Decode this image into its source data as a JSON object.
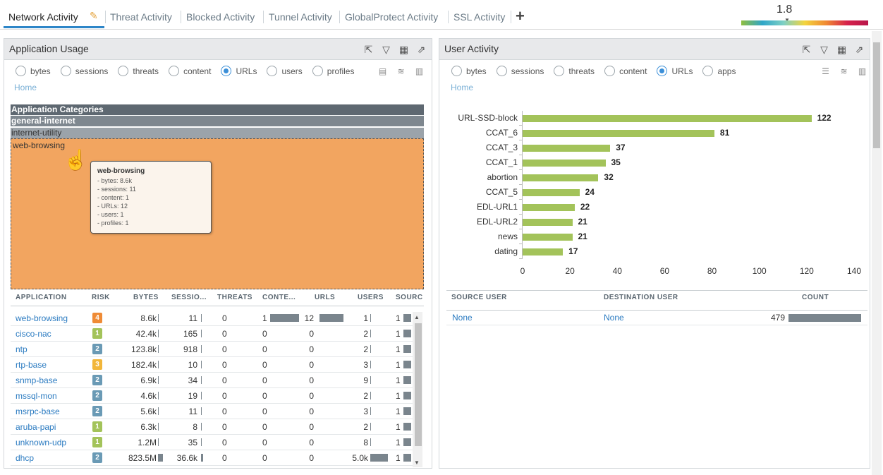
{
  "tabs": [
    {
      "label": "Network Activity"
    },
    {
      "label": "Threat Activity"
    },
    {
      "label": "Blocked Activity"
    },
    {
      "label": "Tunnel Activity"
    },
    {
      "label": "GlobalProtect Activity"
    },
    {
      "label": "SSL Activity"
    }
  ],
  "add_tab_label": "+",
  "risk_scale": {
    "value": "1.8"
  },
  "app_usage": {
    "title": "Application Usage",
    "radios": [
      "bytes",
      "sessions",
      "threats",
      "content",
      "URLs",
      "users",
      "profiles"
    ],
    "selected": "URLs",
    "breadcrumb": "Home",
    "treemap": {
      "levels": [
        "Application Categories",
        "general-internet",
        "internet-utility"
      ],
      "cell": "web-browsing"
    },
    "tooltip": {
      "title": "web-browsing",
      "lines": [
        "- bytes: 8.6k",
        "- sessions: 11",
        "- content: 1",
        "- URLs: 12",
        "- users: 1",
        "- profiles: 1"
      ]
    },
    "columns": [
      "APPLICATION",
      "RISK",
      "BYTES",
      "SESSIO...",
      "THREATS",
      "CONTE...",
      "URLS",
      "USERS",
      "SOURC"
    ],
    "rows": [
      {
        "app": "web-browsing",
        "risk": "4",
        "bytes": "8.6k",
        "sessions": "11",
        "threats": "0",
        "content": "1",
        "urls": "12",
        "users": "1",
        "sources": "1"
      },
      {
        "app": "cisco-nac",
        "risk": "1",
        "bytes": "42.4k",
        "sessions": "165",
        "threats": "0",
        "content": "0",
        "urls": "0",
        "users": "2",
        "sources": "1"
      },
      {
        "app": "ntp",
        "risk": "2",
        "bytes": "123.8k",
        "sessions": "918",
        "threats": "0",
        "content": "0",
        "urls": "0",
        "users": "2",
        "sources": "1"
      },
      {
        "app": "rtp-base",
        "risk": "3",
        "bytes": "182.4k",
        "sessions": "10",
        "threats": "0",
        "content": "0",
        "urls": "0",
        "users": "3",
        "sources": "1"
      },
      {
        "app": "snmp-base",
        "risk": "2",
        "bytes": "6.9k",
        "sessions": "34",
        "threats": "0",
        "content": "0",
        "urls": "0",
        "users": "9",
        "sources": "1"
      },
      {
        "app": "mssql-mon",
        "risk": "2",
        "bytes": "4.6k",
        "sessions": "19",
        "threats": "0",
        "content": "0",
        "urls": "0",
        "users": "2",
        "sources": "1"
      },
      {
        "app": "msrpc-base",
        "risk": "2",
        "bytes": "5.6k",
        "sessions": "11",
        "threats": "0",
        "content": "0",
        "urls": "0",
        "users": "3",
        "sources": "1"
      },
      {
        "app": "aruba-papi",
        "risk": "1",
        "bytes": "6.3k",
        "sessions": "8",
        "threats": "0",
        "content": "0",
        "urls": "0",
        "users": "2",
        "sources": "1"
      },
      {
        "app": "unknown-udp",
        "risk": "1",
        "bytes": "1.2M",
        "sessions": "35",
        "threats": "0",
        "content": "0",
        "urls": "0",
        "users": "8",
        "sources": "1"
      },
      {
        "app": "dhcp",
        "risk": "2",
        "bytes": "823.5M",
        "sessions": "36.6k",
        "threats": "0",
        "content": "0",
        "urls": "0",
        "users": "5.0k",
        "sources": "1"
      }
    ]
  },
  "user_activity": {
    "title": "User Activity",
    "radios": [
      "bytes",
      "sessions",
      "threats",
      "content",
      "URLs",
      "apps"
    ],
    "selected": "URLs",
    "breadcrumb": "Home",
    "columns": [
      "SOURCE USER",
      "DESTINATION USER",
      "COUNT"
    ],
    "rows": [
      {
        "source": "None",
        "destination": "None",
        "count": "479"
      }
    ]
  },
  "chart_data": {
    "type": "bar",
    "orientation": "horizontal",
    "categories": [
      "URL-SSD-block",
      "CCAT_6",
      "CCAT_3",
      "CCAT_1",
      "abortion",
      "CCAT_5",
      "EDL-URL1",
      "EDL-URL2",
      "news",
      "dating"
    ],
    "values": [
      122,
      81,
      37,
      35,
      32,
      24,
      22,
      21,
      21,
      17
    ],
    "xticks": [
      "0",
      "20",
      "40",
      "60",
      "80",
      "100",
      "120",
      "140"
    ],
    "xlim": [
      0,
      140
    ],
    "bar_color": "#a3c35a"
  },
  "colors": {
    "risk_1": "#a3c35a",
    "risk_2": "#6a9ab5",
    "risk_3": "#f2b63a",
    "risk_4": "#ef8b36",
    "accent": "#2e86c8"
  }
}
